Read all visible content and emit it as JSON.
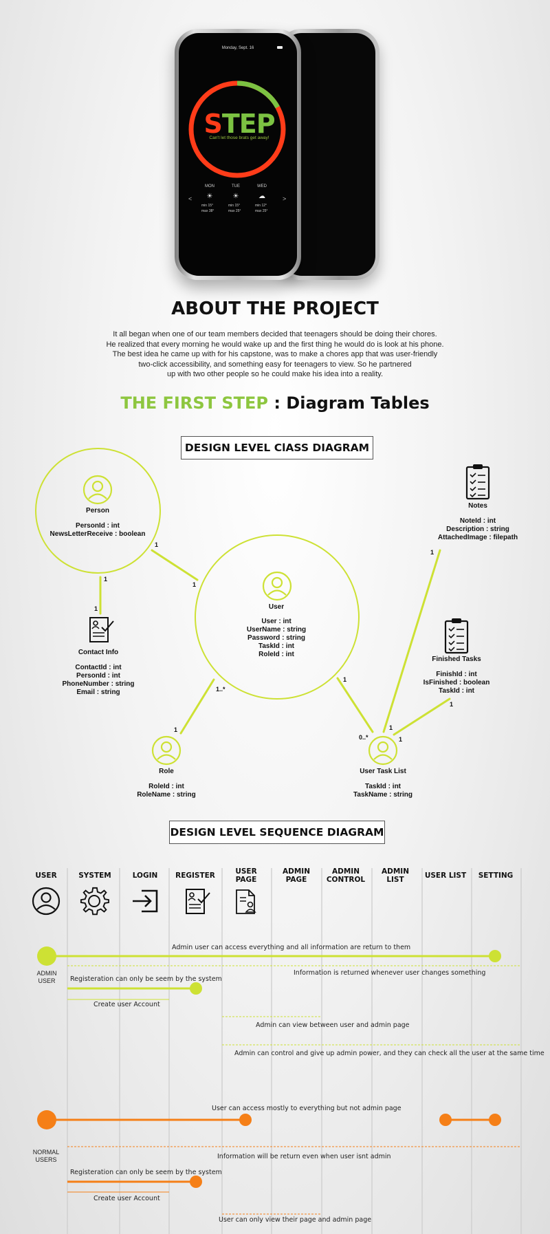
{
  "phone": {
    "date": "Monday, Sept. 16",
    "logo_s": "S",
    "logo_rest": "TEP",
    "tagline": "Can't let those brats get away!",
    "weather": [
      {
        "day": "MON",
        "icon": "sun-icon",
        "min": "min   15°",
        "max": "max   38°"
      },
      {
        "day": "TUE",
        "icon": "sun-icon",
        "min": "min   15°",
        "max": "max   25°"
      },
      {
        "day": "WED",
        "icon": "cloud-icon",
        "min": "min   12°",
        "max": "max   25°"
      }
    ],
    "prev": "<",
    "next": ">",
    "ring_progress": 0.17,
    "ring_colors": {
      "main": "#ff3c19",
      "accent": "#7cc242"
    }
  },
  "about": {
    "title": "ABOUT THE PROJECT",
    "lines": [
      "It all began when one of our team members decided that teenagers should be doing their chores.",
      "He realized that every morning he would wake up and the first thing he would do is look at his phone.",
      "The best idea he came up with for his capstone, was to make a chores app that was user-friendly",
      "two-click accessibility, and something easy for teenagers to view. So he partnered",
      "up with two other people so he could make his idea into a reality."
    ]
  },
  "first_step": {
    "green": "THE FIRST STEP",
    "rest": " : Diagram Tables"
  },
  "class_diagram": {
    "title": "DESIGN LEVEL ClASS DIAGRAM",
    "person": {
      "name": "Person",
      "attrs": [
        "PersonId : int",
        "NewsLetterReceive : boolean"
      ]
    },
    "user": {
      "name": "User",
      "attrs": [
        "User : int",
        "UserName : string",
        "Password : string",
        "TaskId : int",
        "RoleId : int"
      ]
    },
    "contact": {
      "name": "Contact Info",
      "attrs": [
        "ContactId : int",
        "PersonId : int",
        "PhoneNumber : string",
        "Email : string"
      ]
    },
    "role": {
      "name": "Role",
      "attrs": [
        "RoleId : int",
        "RoleName : string"
      ]
    },
    "task_list": {
      "name": "User Task List",
      "attrs": [
        "TaskId : int",
        "TaskName : string"
      ]
    },
    "notes": {
      "name": "Notes",
      "attrs": [
        "NoteId : int",
        "Description : string",
        "AttachedImage : filepath"
      ]
    },
    "finished": {
      "name": "Finished Tasks",
      "attrs": [
        "FinishId : int",
        "IsFinished : boolean",
        "TaskId : int"
      ]
    },
    "multiplicities": {
      "person_user_a": "1",
      "person_user_b": "1",
      "person_contact_a": "1",
      "person_contact_b": "1",
      "user_role_a": "1..*",
      "user_role_b": "1",
      "user_tasks_a": "1",
      "user_tasks_b": "0..*",
      "notes_tasks_a": "1",
      "notes_tasks_b": "1",
      "finished_tasks_a": "1",
      "finished_tasks_b": "1"
    },
    "line_color": "#cde134"
  },
  "sequence": {
    "title": "DESIGN LEVEL SEQUENCE DIAGRAM",
    "columns": [
      {
        "label": "USER",
        "icon": "user-icon"
      },
      {
        "label": "SYSTEM",
        "icon": "gear-icon"
      },
      {
        "label": "LOGIN",
        "icon": "login-icon"
      },
      {
        "label": "REGISTER",
        "icon": "register-icon"
      },
      {
        "label": "USER\nPAGE",
        "icon": "user-page-icon"
      },
      {
        "label": "ADMIN\nPAGE",
        "icon": ""
      },
      {
        "label": "ADMIN\nCONTROL",
        "icon": ""
      },
      {
        "label": "ADMIN\nLIST",
        "icon": ""
      },
      {
        "label": "USER LIST",
        "icon": ""
      },
      {
        "label": "SETTING",
        "icon": ""
      }
    ],
    "admin_label": "ADMIN\nUSER",
    "normal_label": "NORMAL\nUSERS",
    "admin_msgs": {
      "m1": "Admin user can access everything and all information are return to them",
      "m2": "Information is returned whenever user changes something",
      "m3": "Registeration can only be seem by the system",
      "m4": "Create user Account",
      "m5": "Admin can view between user and admin page",
      "m6": "Admin can control and give up admin power, and they can check all the user at the same time"
    },
    "normal_msgs": {
      "m1": "User can access mostly to everything but not admin page",
      "m2": "Information will be return even when user isnt admin",
      "m3": "Registeration can only be seem by the system",
      "m4": "Create user Account",
      "m5": "User can only view their page and admin page"
    },
    "admin_color": "#cde134",
    "normal_color": "#f57f17"
  }
}
